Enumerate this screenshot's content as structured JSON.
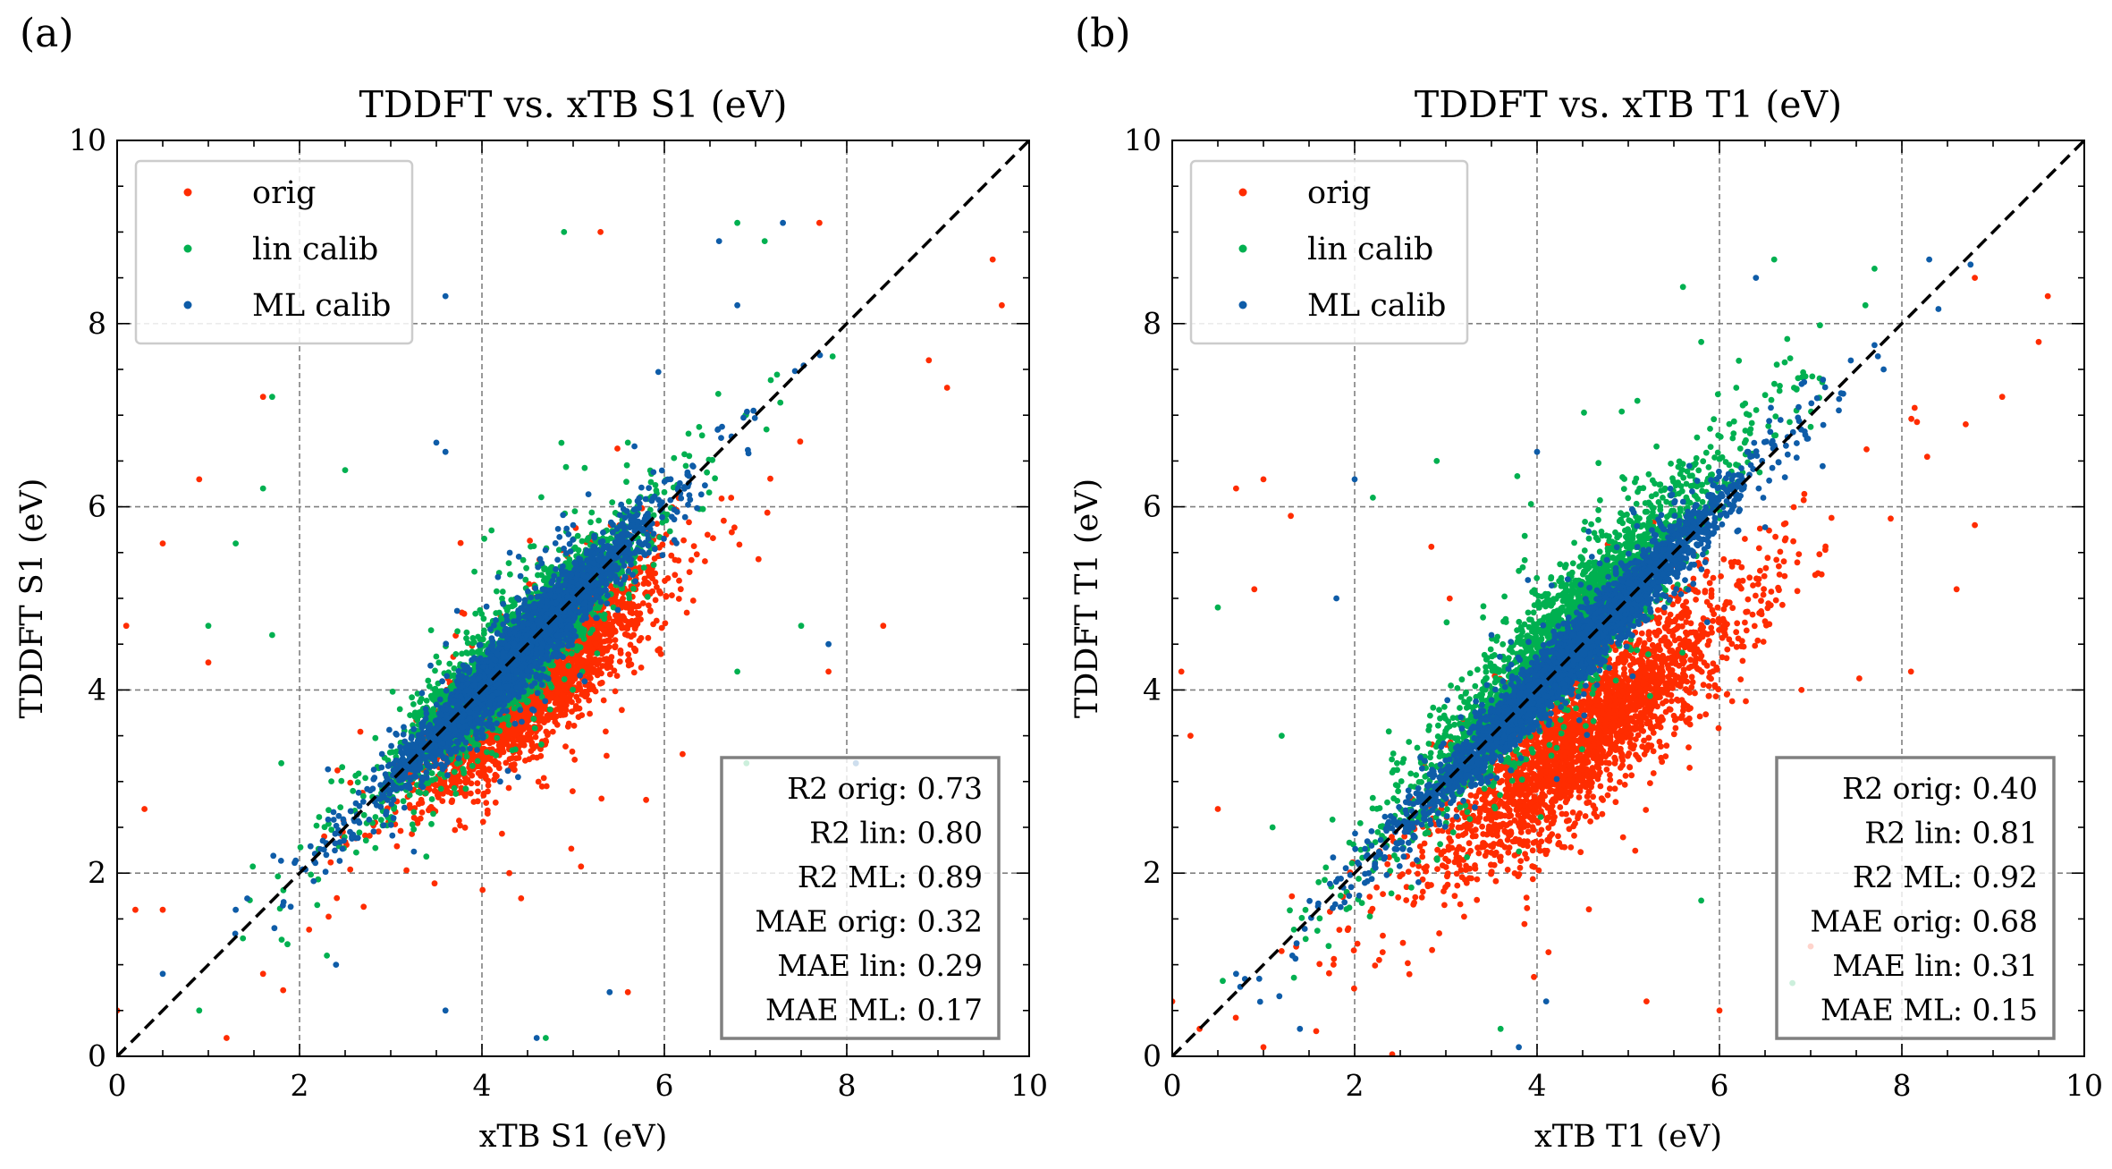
{
  "chart_data": [
    {
      "type": "scatter",
      "panel_label": "(a)",
      "title": "TDDFT vs. xTB S1 (eV)",
      "xlabel": "xTB S1 (eV)",
      "ylabel": "TDDFT S1 (eV)",
      "xlim": [
        0,
        10
      ],
      "ylim": [
        0,
        10
      ],
      "xticks": [
        0,
        2,
        4,
        6,
        8,
        10
      ],
      "yticks": [
        0,
        2,
        4,
        6,
        8,
        10
      ],
      "grid": true,
      "legend_position": "top-left",
      "reference_line": "y = x (dashed black)",
      "series": [
        {
          "name": "orig",
          "color": "#ff2c00",
          "center_x": 4.6,
          "spread": 0.55,
          "slope": 0.84,
          "intercept": 0.2,
          "noise": 0.32,
          "x_range": [
            0.2,
            9.6
          ],
          "outliers": [
            [
              1.6,
              7.2
            ],
            [
              0.5,
              5.6
            ],
            [
              0.9,
              6.3
            ],
            [
              1.0,
              4.3
            ],
            [
              0.3,
              2.7
            ],
            [
              0.1,
              4.7
            ],
            [
              0.2,
              1.6
            ],
            [
              0.5,
              1.6
            ],
            [
              1.2,
              0.2
            ],
            [
              6.2,
              3.3
            ],
            [
              5.3,
              9.0
            ],
            [
              7.7,
              9.1
            ],
            [
              9.6,
              8.7
            ],
            [
              9.7,
              8.2
            ],
            [
              8.4,
              4.7
            ],
            [
              7.8,
              4.2
            ],
            [
              5.8,
              2.8
            ],
            [
              5.6,
              0.7
            ],
            [
              4.3,
              2.0
            ],
            [
              1.6,
              0.9
            ],
            [
              0.0,
              0.5
            ],
            [
              8.9,
              7.6
            ],
            [
              9.1,
              7.3
            ]
          ]
        },
        {
          "name": "lin calib",
          "color": "#00b050",
          "center_x": 4.4,
          "spread": 0.6,
          "slope": 0.97,
          "intercept": 0.15,
          "noise": 0.28,
          "x_range": [
            0.5,
            8.0
          ],
          "outliers": [
            [
              1.7,
              7.2
            ],
            [
              1.6,
              6.2
            ],
            [
              1.3,
              5.6
            ],
            [
              1.0,
              4.7
            ],
            [
              1.7,
              4.6
            ],
            [
              1.8,
              3.2
            ],
            [
              6.8,
              9.1
            ],
            [
              7.1,
              8.9
            ],
            [
              4.9,
              9.0
            ],
            [
              5.1,
              4.2
            ],
            [
              6.8,
              4.2
            ],
            [
              7.5,
              4.7
            ],
            [
              2.5,
              6.4
            ],
            [
              0.9,
              0.5
            ],
            [
              2.3,
              1.1
            ],
            [
              4.7,
              0.2
            ],
            [
              6.9,
              3.2
            ],
            [
              8.1,
              3.2
            ],
            [
              5.6,
              6.7
            ],
            [
              5.0,
              5.3
            ]
          ]
        },
        {
          "name": "ML calib",
          "color": "#0e5ca8",
          "center_x": 4.4,
          "spread": 0.65,
          "slope": 1.0,
          "intercept": 0.0,
          "noise": 0.18,
          "x_range": [
            0.5,
            8.5
          ],
          "outliers": [
            [
              3.6,
              8.3
            ],
            [
              6.6,
              8.9
            ],
            [
              7.3,
              9.1
            ],
            [
              6.8,
              8.2
            ],
            [
              5.0,
              5.8
            ],
            [
              3.6,
              6.6
            ],
            [
              4.2,
              3.0
            ],
            [
              3.6,
              0.5
            ],
            [
              4.6,
              0.2
            ],
            [
              5.4,
              0.7
            ],
            [
              2.4,
              1.0
            ],
            [
              0.5,
              0.9
            ],
            [
              1.3,
              1.6
            ],
            [
              3.5,
              6.7
            ],
            [
              8.1,
              3.2
            ],
            [
              7.8,
              4.5
            ]
          ]
        }
      ],
      "stats_box": {
        "position": "bottom-right",
        "lines": [
          "R2 orig: 0.73",
          "R2 lin: 0.80",
          "R2 ML: 0.89",
          "MAE orig: 0.32",
          "MAE lin: 0.29",
          "MAE ML: 0.17"
        ]
      }
    },
    {
      "type": "scatter",
      "panel_label": "(b)",
      "title": "TDDFT vs. xTB T1 (eV)",
      "xlabel": "xTB T1 (eV)",
      "ylabel": "TDDFT T1 (eV)",
      "xlim": [
        0,
        10
      ],
      "ylim": [
        0,
        10
      ],
      "xticks": [
        0,
        2,
        4,
        6,
        8,
        10
      ],
      "yticks": [
        0,
        2,
        4,
        6,
        8,
        10
      ],
      "grid": true,
      "legend_position": "top-left",
      "reference_line": "y = x (dashed black)",
      "series": [
        {
          "name": "orig",
          "color": "#ff2c00",
          "center_x": 4.5,
          "spread": 0.75,
          "slope": 0.78,
          "intercept": 0.0,
          "noise": 0.4,
          "x_range": [
            0.1,
            9.6
          ],
          "outliers": [
            [
              1.0,
              6.3
            ],
            [
              0.7,
              6.2
            ],
            [
              1.3,
              5.9
            ],
            [
              0.9,
              5.1
            ],
            [
              0.1,
              4.2
            ],
            [
              0.2,
              3.5
            ],
            [
              0.5,
              2.7
            ],
            [
              9.6,
              8.3
            ],
            [
              9.5,
              7.8
            ],
            [
              8.8,
              8.5
            ],
            [
              9.1,
              7.2
            ],
            [
              8.7,
              6.9
            ],
            [
              8.6,
              5.1
            ],
            [
              8.8,
              5.8
            ],
            [
              8.1,
              4.2
            ],
            [
              6.9,
              4.0
            ],
            [
              0.0,
              0.6
            ],
            [
              0.3,
              0.3
            ],
            [
              1.0,
              0.1
            ],
            [
              5.2,
              0.6
            ],
            [
              6.0,
              0.5
            ],
            [
              7.0,
              1.2
            ]
          ]
        },
        {
          "name": "lin calib",
          "color": "#00b050",
          "center_x": 4.3,
          "spread": 0.75,
          "slope": 1.05,
          "intercept": 0.05,
          "noise": 0.33,
          "x_range": [
            0.5,
            7.2
          ],
          "outliers": [
            [
              6.6,
              8.7
            ],
            [
              7.7,
              8.6
            ],
            [
              7.6,
              8.2
            ],
            [
              5.6,
              8.4
            ],
            [
              5.8,
              7.8
            ],
            [
              2.2,
              6.1
            ],
            [
              0.5,
              4.9
            ],
            [
              1.2,
              3.5
            ],
            [
              1.1,
              2.5
            ],
            [
              3.6,
              0.3
            ],
            [
              5.8,
              1.7
            ],
            [
              6.8,
              0.8
            ],
            [
              2.9,
              6.5
            ],
            [
              3.8,
              5.3
            ]
          ]
        },
        {
          "name": "ML calib",
          "color": "#0e5ca8",
          "center_x": 4.4,
          "spread": 0.8,
          "slope": 1.0,
          "intercept": 0.0,
          "noise": 0.18,
          "x_range": [
            0.6,
            8.8
          ],
          "outliers": [
            [
              2.0,
              6.3
            ],
            [
              3.9,
              5.2
            ],
            [
              4.0,
              6.6
            ],
            [
              3.5,
              4.6
            ],
            [
              3.3,
              3.6
            ],
            [
              6.4,
              8.5
            ],
            [
              8.3,
              8.7
            ],
            [
              7.8,
              7.5
            ],
            [
              4.1,
              0.6
            ],
            [
              3.8,
              0.1
            ],
            [
              2.7,
              1.9
            ],
            [
              1.4,
              0.3
            ],
            [
              0.7,
              0.9
            ],
            [
              1.8,
              5.0
            ]
          ]
        }
      ],
      "stats_box": {
        "position": "bottom-right",
        "lines": [
          "R2 orig: 0.40",
          "R2 lin: 0.81",
          "R2 ML: 0.92",
          "MAE orig: 0.68",
          "MAE lin: 0.31",
          "MAE ML: 0.15"
        ]
      }
    }
  ]
}
